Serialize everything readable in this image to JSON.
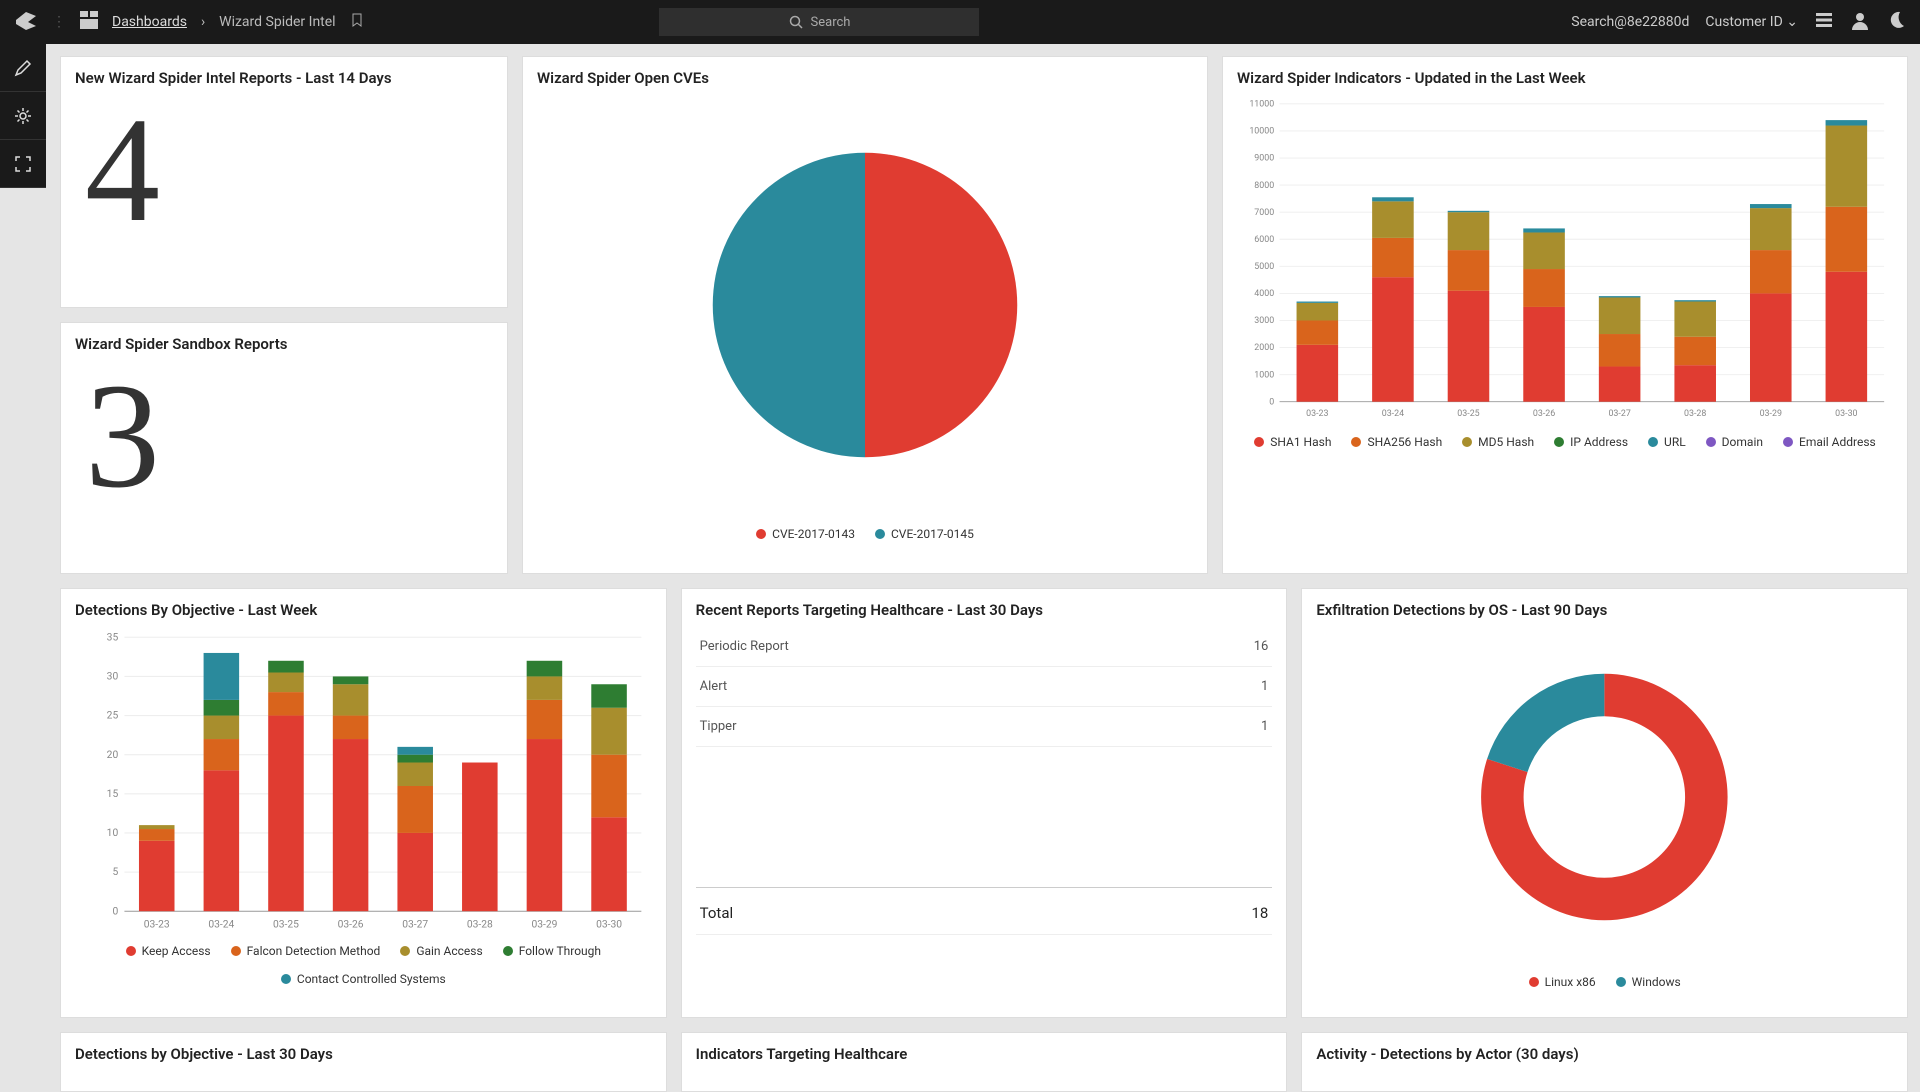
{
  "topbar": {
    "dashboards_label": "Dashboards",
    "crumb_sep": "›",
    "current": "Wizard Spider Intel",
    "search_placeholder": "Search",
    "user_text": "Search@8e22880d",
    "customer_label": "Customer ID"
  },
  "colors": {
    "red": "#e03c31",
    "teal": "#2a8a9c",
    "olive": "#a88e2d",
    "green": "#2e7d32",
    "purple": "#7e57c2",
    "orange": "#d9641c"
  },
  "stat1": {
    "title": "New Wizard Spider Intel Reports - Last 14 Days",
    "value": "4"
  },
  "stat2": {
    "title": "Wizard Spider Sandbox Reports",
    "value": "3"
  },
  "pie_cve": {
    "title": "Wizard Spider Open CVEs",
    "slices": [
      {
        "label": "CVE-2017-0143",
        "color": "#e03c31",
        "value": 50
      },
      {
        "label": "CVE-2017-0145",
        "color": "#2a8a9c",
        "value": 50
      }
    ]
  },
  "indicators": {
    "title": "Wizard Spider Indicators - Updated in the Last Week",
    "ylim": [
      0,
      11000
    ],
    "ytick_step": 1000,
    "categories": [
      "03-23",
      "03-24",
      "03-25",
      "03-26",
      "03-27",
      "03-28",
      "03-29",
      "03-30"
    ],
    "series": [
      {
        "label": "SHA1 Hash",
        "color": "#e03c31"
      },
      {
        "label": "SHA256 Hash",
        "color": "#d9641c"
      },
      {
        "label": "MD5 Hash",
        "color": "#a88e2d"
      },
      {
        "label": "IP Address",
        "color": "#2e7d32"
      },
      {
        "label": "URL",
        "color": "#2a8a9c"
      },
      {
        "label": "Domain",
        "color": "#7e57c2"
      },
      {
        "label": "Email Address",
        "color": "#7e57c2"
      }
    ],
    "stacks": [
      [
        2100,
        900,
        650,
        0,
        50,
        0,
        0
      ],
      [
        4600,
        1450,
        1350,
        0,
        150,
        0,
        0
      ],
      [
        4100,
        1500,
        1400,
        0,
        50,
        0,
        0
      ],
      [
        3500,
        1400,
        1350,
        0,
        150,
        0,
        0
      ],
      [
        1300,
        1200,
        1350,
        0,
        50,
        0,
        0
      ],
      [
        1350,
        1050,
        1300,
        0,
        50,
        0,
        0
      ],
      [
        4000,
        1600,
        1550,
        0,
        150,
        0,
        0
      ],
      [
        4800,
        2400,
        3000,
        0,
        200,
        0,
        0
      ]
    ]
  },
  "detections": {
    "title": "Detections By Objective - Last Week",
    "ylim": [
      0,
      35
    ],
    "ytick_step": 5,
    "categories": [
      "03-23",
      "03-24",
      "03-25",
      "03-26",
      "03-27",
      "03-28",
      "03-29",
      "03-30"
    ],
    "series": [
      {
        "label": "Keep Access",
        "color": "#e03c31"
      },
      {
        "label": "Falcon Detection Method",
        "color": "#d9641c"
      },
      {
        "label": "Gain Access",
        "color": "#a88e2d"
      },
      {
        "label": "Follow Through",
        "color": "#2e7d32"
      },
      {
        "label": "Contact Controlled Systems",
        "color": "#2a8a9c"
      }
    ],
    "stacks": [
      [
        9,
        1.5,
        0.5,
        0,
        0
      ],
      [
        18,
        4,
        3,
        2,
        6
      ],
      [
        25,
        3,
        2.5,
        1.5,
        0
      ],
      [
        22,
        3,
        4,
        1,
        0
      ],
      [
        10,
        6,
        3,
        1,
        1
      ],
      [
        19,
        0,
        0,
        0,
        0
      ],
      [
        22,
        5,
        3,
        2,
        0
      ],
      [
        12,
        8,
        6,
        3,
        0
      ]
    ]
  },
  "reports": {
    "title": "Recent Reports Targeting Healthcare - Last 30 Days",
    "rows": [
      {
        "label": "Periodic Report",
        "value": "16"
      },
      {
        "label": "Alert",
        "value": "1"
      },
      {
        "label": "Tipper",
        "value": "1"
      }
    ],
    "total_label": "Total",
    "total_value": "18"
  },
  "exfil": {
    "title": "Exfiltration Detections by OS - Last 90 Days",
    "slices": [
      {
        "label": "Linux x86",
        "color": "#e03c31",
        "value": 80
      },
      {
        "label": "Windows",
        "color": "#2a8a9c",
        "value": 20
      }
    ]
  },
  "row3": {
    "c1": "Detections by Objective - Last 30 Days",
    "c2": "Indicators Targeting Healthcare",
    "c3": "Activity - Detections by Actor (30 days)"
  }
}
